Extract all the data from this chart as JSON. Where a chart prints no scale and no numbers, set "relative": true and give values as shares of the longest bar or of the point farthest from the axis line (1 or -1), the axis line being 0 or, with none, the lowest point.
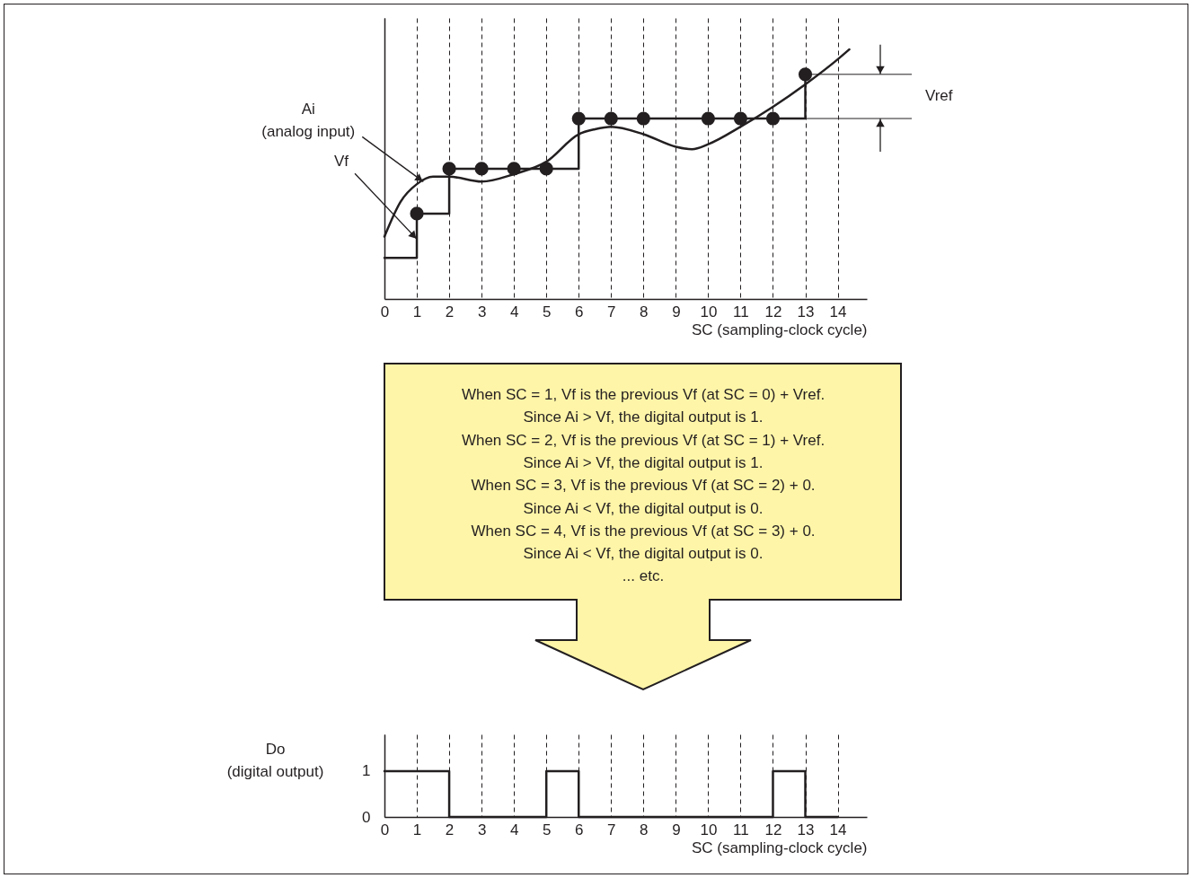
{
  "chart_data": [
    {
      "type": "line",
      "xlabel": "SC (sampling-clock cycle)",
      "relative": true,
      "xlim": [
        0,
        14.9
      ],
      "xticks": [
        0,
        1,
        2,
        3,
        4,
        5,
        6,
        7,
        8,
        9,
        10,
        11,
        12,
        13,
        14
      ],
      "grid": "x",
      "series": [
        {
          "type": "line",
          "color": "#231f20",
          "x": [
            0,
            0.5,
            1,
            1.5,
            2,
            3,
            4,
            5,
            6,
            6.5,
            7,
            8,
            9,
            9.5,
            10,
            11,
            12,
            13,
            14,
            14.36
          ],
          "values": [
            0.25,
            0.39,
            0.46,
            0.49,
            0.49,
            0.47,
            0.5,
            0.55,
            0.66,
            0.68,
            0.69,
            0.66,
            0.61,
            0.6,
            0.62,
            0.69,
            0.77,
            0.86,
            0.96,
            1
          ]
        },
        {
          "type": "step",
          "color": "#231f20",
          "x": [
            0,
            1,
            2,
            6,
            13
          ],
          "values": [
            0.165,
            0.342,
            0.522,
            0.723,
            0.9
          ]
        },
        {
          "type": "scatter",
          "marker": "circle",
          "color": "#231f20",
          "x": [
            1,
            2,
            3,
            4,
            5,
            6,
            7,
            8,
            10,
            11,
            12,
            13
          ],
          "values": [
            0.342,
            0.522,
            0.522,
            0.522,
            0.522,
            0.723,
            0.723,
            0.723,
            0.723,
            0.723,
            0.723,
            0.9
          ]
        }
      ],
      "annotations": [
        {
          "text": "Ai\n(analog input)",
          "x": 1.2,
          "y": 0.47
        },
        {
          "text": "Vf",
          "x": 1,
          "y": 0.24
        }
      ],
      "ref_lines": [
        {
          "axis": "y",
          "value": 0.9,
          "label": "Vref"
        },
        {
          "axis": "y",
          "value": 0.723
        }
      ]
    },
    {
      "type": "other",
      "annotations": [
        "When SC = 1, Vf is the previous Vf (at SC = 0) + Vref.",
        "Since Ai > Vf, the digital output is 1.",
        "When SC = 2, Vf is the previous Vf (at SC = 1) + Vref.",
        "Since Ai > Vf, the digital output is 1.",
        "When SC = 3, Vf is the previous Vf (at SC = 2) + 0.",
        "Since Ai < Vf, the digital output is 0.",
        "When SC = 4, Vf is the previous Vf (at SC = 3) + 0.",
        "Since Ai < Vf, the digital output is 0.",
        "... etc."
      ]
    },
    {
      "type": "step",
      "xlabel": "SC (sampling-clock cycle)",
      "ylabel": "Do\n(digital output)",
      "xlim": [
        0,
        14.9
      ],
      "xticks": [
        0,
        1,
        2,
        3,
        4,
        5,
        6,
        7,
        8,
        9,
        10,
        11,
        12,
        13,
        14
      ],
      "ylim": [
        0,
        1.8
      ],
      "yticks": [
        0,
        1
      ],
      "grid": "x",
      "color": "#231f20",
      "x": [
        0,
        1,
        2,
        3,
        4,
        5,
        6,
        7,
        8,
        9,
        10,
        11,
        12,
        13,
        14
      ],
      "values": [
        1,
        1,
        0,
        0,
        0,
        1,
        0,
        0,
        0,
        0,
        0,
        0,
        1,
        0,
        0
      ]
    }
  ]
}
